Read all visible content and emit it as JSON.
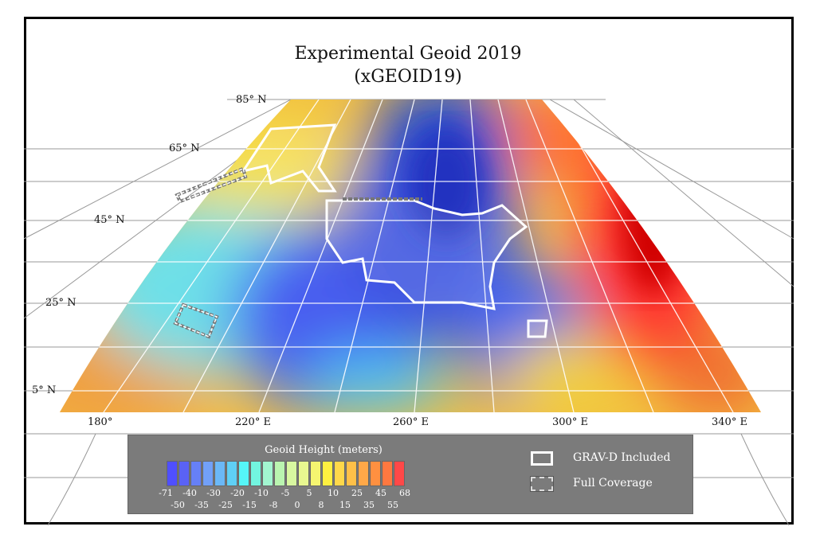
{
  "title": "Experimental Geoid 2019",
  "subtitle": "(xGEOID19)",
  "latitude_labels": [
    "85° N",
    "65° N",
    "45° N",
    "25° N",
    "5° N"
  ],
  "longitude_labels": [
    "180°",
    "220° E",
    "260° E",
    "300° E",
    "340° E"
  ],
  "legend": {
    "title": "Geoid Height (meters)",
    "ticks": [
      "-71",
      "-50",
      "-40",
      "-35",
      "-30",
      "-25",
      "-20",
      "-15",
      "-10",
      "-8",
      "-5",
      "0",
      "5",
      "8",
      "10",
      "15",
      "25",
      "35",
      "45",
      "55",
      "68"
    ],
    "colors": [
      "#4f4fff",
      "#5a62f5",
      "#6680f7",
      "#72a0f8",
      "#6bb8f7",
      "#5fd0f5",
      "#55f5f8",
      "#72f5e0",
      "#a2f5d0",
      "#baf5b0",
      "#d8f7a0",
      "#e8f790",
      "#f5f570",
      "#fff040",
      "#ffd84a",
      "#ffc048",
      "#ffa848",
      "#ff9040",
      "#ff7840",
      "#ff4848"
    ],
    "grav_d_label": "GRAV-D Included",
    "full_coverage_label": "Full Coverage"
  }
}
